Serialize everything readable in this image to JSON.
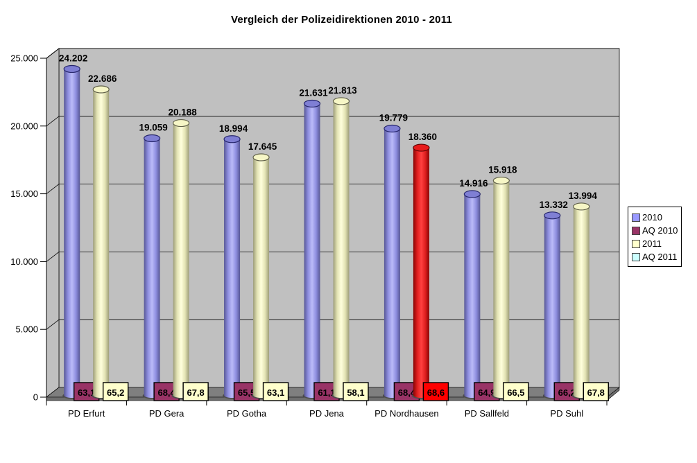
{
  "chart_data": {
    "type": "bar",
    "subtype": "3d-cylinder",
    "title": "Vergleich der Polizeidirektionen 2010 - 2011",
    "categories": [
      "PD Erfurt",
      "PD Gera",
      "PD Gotha",
      "PD Jena",
      "PD Nordhausen",
      "PD Sallfeld",
      "PD Suhl"
    ],
    "series": [
      {
        "name": "2010",
        "role": "cylinder",
        "color": "#9999FF",
        "values": [
          24202,
          19059,
          18994,
          21631,
          19779,
          14916,
          13332
        ],
        "labels": [
          "24.202",
          "19.059",
          "18.994",
          "21.631",
          "19.779",
          "14.916",
          "13.332"
        ]
      },
      {
        "name": "AQ 2010",
        "role": "label-box",
        "color": "#993366",
        "values": [
          63.1,
          68.4,
          65.5,
          61.1,
          68.4,
          64.9,
          66.2
        ],
        "labels": [
          "63,1",
          "68,4",
          "65,5",
          "61,1",
          "68,4",
          "64,9",
          "66,2"
        ]
      },
      {
        "name": "2011",
        "role": "cylinder",
        "color": "#FFFFCC",
        "values": [
          22686,
          20188,
          17645,
          21813,
          18360,
          15918,
          13994
        ],
        "labels": [
          "22.686",
          "20.188",
          "17.645",
          "21.813",
          "18.360",
          "15.918",
          "13.994"
        ],
        "highlight_index": 4,
        "highlight_color": "#FF0000"
      },
      {
        "name": "AQ 2011",
        "role": "label-box",
        "color": "#CCFFFF",
        "box_color": "#FFFFCC",
        "values": [
          65.2,
          67.8,
          63.1,
          58.1,
          68.6,
          66.5,
          67.8
        ],
        "labels": [
          "65,2",
          "67,8",
          "63,1",
          "58,1",
          "68,6",
          "66,5",
          "67,8"
        ],
        "highlight_index": 4,
        "highlight_color": "#FF0000"
      }
    ],
    "ylim": [
      0,
      25000
    ],
    "ytick_labels": [
      "25.000",
      "20.000",
      "15.000",
      "10.000",
      "5.000",
      "0"
    ],
    "ytick_values": [
      25000,
      20000,
      15000,
      10000,
      5000,
      0
    ],
    "grid": true,
    "legend_position": "right",
    "legend_entries": [
      "2010",
      "AQ 2010",
      "2011",
      "AQ 2011"
    ],
    "colors": {
      "wall": "#C0C0C0",
      "floor": "#7F7F7F",
      "floor_front": "#6E6E6E",
      "highlight": "#FF0000"
    }
  }
}
